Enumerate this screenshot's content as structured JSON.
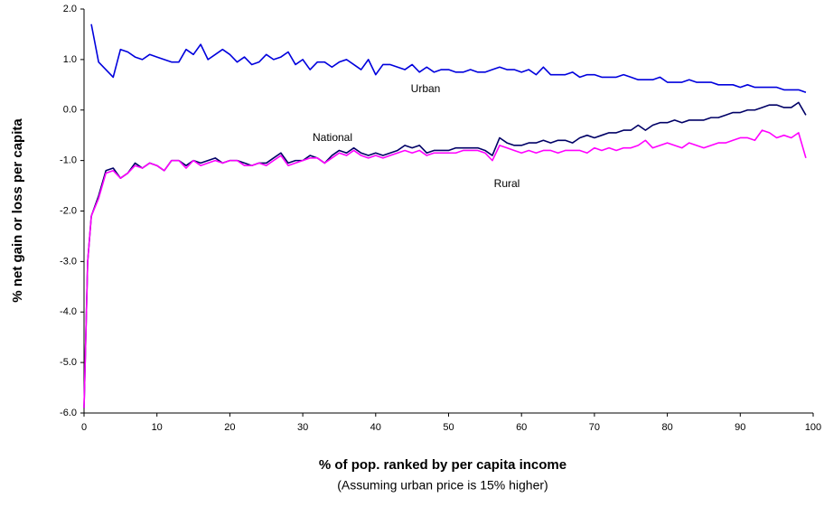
{
  "chart_data": {
    "type": "line",
    "y_label": "% net gain or loss per capita",
    "x_label": "% of pop. ranked by per capita income",
    "subtitle": "(Assuming urban price is 15% higher)",
    "annotations": [
      "Urban",
      "National",
      "Rural"
    ],
    "xlim": [
      0,
      100
    ],
    "xticks": [
      0,
      10,
      20,
      30,
      40,
      50,
      60,
      70,
      80,
      90,
      100
    ],
    "ylim": [
      -6,
      2
    ],
    "yticks": [
      {
        "value": 2,
        "label": "2.0"
      },
      {
        "value": 1,
        "label": "1.0"
      },
      {
        "value": 0,
        "label": "0.0"
      },
      {
        "value": -1,
        "label": "-1.0"
      },
      {
        "value": -2,
        "label": "-2.0"
      },
      {
        "value": -3,
        "label": "-3.0"
      },
      {
        "value": -4,
        "label": "-4.0"
      },
      {
        "value": -5,
        "label": "-5.0"
      },
      {
        "value": -6,
        "label": "-6.0"
      }
    ],
    "grid": false,
    "x": [
      0,
      0.5,
      1,
      2,
      3,
      4,
      5,
      6,
      7,
      8,
      9,
      10,
      11,
      12,
      13,
      14,
      15,
      16,
      17,
      18,
      19,
      20,
      21,
      22,
      23,
      24,
      25,
      26,
      27,
      28,
      29,
      30,
      31,
      32,
      33,
      34,
      35,
      36,
      37,
      38,
      39,
      40,
      41,
      42,
      43,
      44,
      45,
      46,
      47,
      48,
      49,
      50,
      51,
      52,
      53,
      54,
      55,
      56,
      57,
      58,
      59,
      60,
      61,
      62,
      63,
      64,
      65,
      66,
      67,
      68,
      69,
      70,
      71,
      72,
      73,
      74,
      75,
      76,
      77,
      78,
      79,
      80,
      81,
      82,
      83,
      84,
      85,
      86,
      87,
      88,
      89,
      90,
      91,
      92,
      93,
      94,
      95,
      96,
      97,
      98,
      99
    ],
    "series": [
      {
        "name": "Urban",
        "color": "#0000dd",
        "values": [
          null,
          null,
          1.7,
          0.95,
          0.8,
          0.65,
          1.2,
          1.15,
          1.05,
          1.0,
          1.1,
          1.05,
          1.0,
          0.95,
          0.95,
          1.2,
          1.1,
          1.3,
          1.0,
          1.1,
          1.2,
          1.1,
          0.95,
          1.05,
          0.9,
          0.95,
          1.1,
          1.0,
          1.05,
          1.15,
          0.9,
          1.0,
          0.8,
          0.95,
          0.95,
          0.85,
          0.95,
          1.0,
          0.9,
          0.8,
          1.0,
          0.7,
          0.9,
          0.9,
          0.85,
          0.8,
          0.9,
          0.75,
          0.85,
          0.75,
          0.8,
          0.8,
          0.75,
          0.75,
          0.8,
          0.75,
          0.75,
          0.8,
          0.85,
          0.8,
          0.8,
          0.75,
          0.8,
          0.7,
          0.85,
          0.7,
          0.7,
          0.7,
          0.75,
          0.65,
          0.7,
          0.7,
          0.65,
          0.65,
          0.65,
          0.7,
          0.65,
          0.6,
          0.6,
          0.6,
          0.65,
          0.55,
          0.55,
          0.55,
          0.6,
          0.55,
          0.55,
          0.55,
          0.5,
          0.5,
          0.5,
          0.45,
          0.5,
          0.45,
          0.45,
          0.45,
          0.45,
          0.4,
          0.4,
          0.4,
          0.35
        ]
      },
      {
        "name": "National",
        "color": "#000066",
        "values": [
          -5.9,
          -3.0,
          -2.1,
          -1.7,
          -1.2,
          -1.15,
          -1.35,
          -1.25,
          -1.05,
          -1.15,
          -1.05,
          -1.1,
          -1.2,
          -1.0,
          -1.0,
          -1.1,
          -1.0,
          -1.05,
          -1.0,
          -0.95,
          -1.05,
          -1.0,
          -1.0,
          -1.05,
          -1.1,
          -1.05,
          -1.05,
          -0.95,
          -0.85,
          -1.05,
          -1.0,
          -1.0,
          -0.9,
          -0.95,
          -1.05,
          -0.9,
          -0.8,
          -0.85,
          -0.75,
          -0.85,
          -0.9,
          -0.85,
          -0.9,
          -0.85,
          -0.8,
          -0.7,
          -0.75,
          -0.7,
          -0.85,
          -0.8,
          -0.8,
          -0.8,
          -0.75,
          -0.75,
          -0.75,
          -0.75,
          -0.8,
          -0.9,
          -0.55,
          -0.65,
          -0.7,
          -0.7,
          -0.65,
          -0.65,
          -0.6,
          -0.65,
          -0.6,
          -0.6,
          -0.65,
          -0.55,
          -0.5,
          -0.55,
          -0.5,
          -0.45,
          -0.45,
          -0.4,
          -0.4,
          -0.3,
          -0.4,
          -0.3,
          -0.25,
          -0.25,
          -0.2,
          -0.25,
          -0.2,
          -0.2,
          -0.2,
          -0.15,
          -0.15,
          -0.1,
          -0.05,
          -0.05,
          0.0,
          0.0,
          0.05,
          0.1,
          0.1,
          0.05,
          0.05,
          0.15,
          -0.1
        ]
      },
      {
        "name": "Rural",
        "color": "#ff00ff",
        "values": [
          -5.9,
          -3.0,
          -2.1,
          -1.75,
          -1.25,
          -1.2,
          -1.35,
          -1.25,
          -1.1,
          -1.15,
          -1.05,
          -1.1,
          -1.2,
          -1.0,
          -1.0,
          -1.15,
          -1.0,
          -1.1,
          -1.05,
          -1.0,
          -1.05,
          -1.0,
          -1.0,
          -1.1,
          -1.1,
          -1.05,
          -1.1,
          -1.0,
          -0.9,
          -1.1,
          -1.05,
          -1.0,
          -0.95,
          -0.95,
          -1.05,
          -0.95,
          -0.85,
          -0.9,
          -0.8,
          -0.9,
          -0.95,
          -0.9,
          -0.95,
          -0.9,
          -0.85,
          -0.8,
          -0.85,
          -0.8,
          -0.9,
          -0.85,
          -0.85,
          -0.85,
          -0.85,
          -0.8,
          -0.8,
          -0.8,
          -0.85,
          -1.0,
          -0.7,
          -0.75,
          -0.8,
          -0.85,
          -0.8,
          -0.85,
          -0.8,
          -0.8,
          -0.85,
          -0.8,
          -0.8,
          -0.8,
          -0.85,
          -0.75,
          -0.8,
          -0.75,
          -0.8,
          -0.75,
          -0.75,
          -0.7,
          -0.6,
          -0.75,
          -0.7,
          -0.65,
          -0.7,
          -0.75,
          -0.65,
          -0.7,
          -0.75,
          -0.7,
          -0.65,
          -0.65,
          -0.6,
          -0.55,
          -0.55,
          -0.6,
          -0.4,
          -0.45,
          -0.55,
          -0.5,
          -0.55,
          -0.45,
          -0.95
        ]
      }
    ]
  }
}
